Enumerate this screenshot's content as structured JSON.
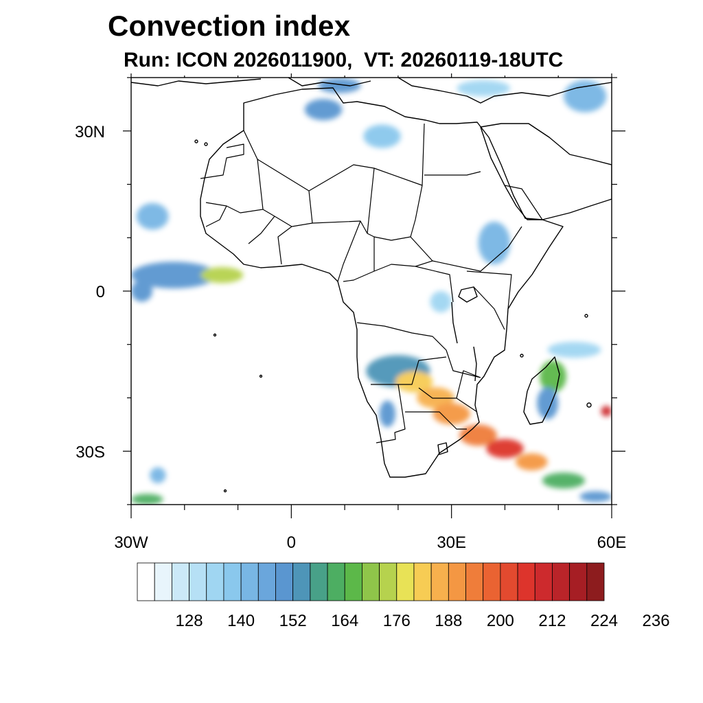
{
  "header": {
    "title": "Convection index",
    "subtitle": "Run: ICON 2026011900,  VT: 20260119-18UTC"
  },
  "map": {
    "projection": "cylindrical equidistant",
    "lon_range": [
      -30,
      60
    ],
    "lat_range": [
      -40,
      40
    ],
    "lat_tick_labels": [
      {
        "value": 30,
        "label": "30N"
      },
      {
        "value": 0,
        "label": "0"
      },
      {
        "value": -30,
        "label": "30S"
      }
    ],
    "lon_tick_labels": [
      {
        "value": -30,
        "label": "30W"
      },
      {
        "value": 0,
        "label": "0"
      },
      {
        "value": 30,
        "label": "30E"
      },
      {
        "value": 60,
        "label": "60E"
      }
    ],
    "minor_lat_ticks": [
      40,
      20,
      10,
      -10,
      -20,
      -40
    ],
    "minor_lon_ticks": [
      -20,
      -10,
      10,
      20,
      40,
      50
    ],
    "convection_areas": [
      {
        "lon": 9,
        "lat": 38.5,
        "rx": 4,
        "ry": 1.4,
        "value": 150
      },
      {
        "lon": 6,
        "lat": 34,
        "rx": 3.5,
        "ry": 2,
        "value": 148
      },
      {
        "lon": 17,
        "lat": 29,
        "rx": 3.5,
        "ry": 2.2,
        "value": 138
      },
      {
        "lon": 36,
        "lat": 38,
        "rx": 5,
        "ry": 1.5,
        "value": 132
      },
      {
        "lon": 55,
        "lat": 36.5,
        "rx": 4,
        "ry": 3,
        "value": 140
      },
      {
        "lon": -26,
        "lat": 14,
        "rx": 3,
        "ry": 2.5,
        "value": 140
      },
      {
        "lon": -22,
        "lat": 3,
        "rx": 8,
        "ry": 2.5,
        "value": 148
      },
      {
        "lon": -13,
        "lat": 3,
        "rx": 4,
        "ry": 1.5,
        "value": 172
      },
      {
        "lon": -28,
        "lat": 0,
        "rx": 2,
        "ry": 2,
        "value": 150
      },
      {
        "lon": 38,
        "lat": 9,
        "rx": 3,
        "ry": 4,
        "value": 140
      },
      {
        "lon": 28,
        "lat": -2,
        "rx": 2,
        "ry": 2,
        "value": 135
      },
      {
        "lon": 20,
        "lat": -15,
        "rx": 6,
        "ry": 3,
        "value": 155
      },
      {
        "lon": 23,
        "lat": -17,
        "rx": 3.5,
        "ry": 2,
        "value": 180
      },
      {
        "lon": 27,
        "lat": -20,
        "rx": 3.5,
        "ry": 2,
        "value": 184
      },
      {
        "lon": 30,
        "lat": -23,
        "rx": 3.5,
        "ry": 2,
        "value": 190
      },
      {
        "lon": 35,
        "lat": -27,
        "rx": 3.5,
        "ry": 2,
        "value": 195
      },
      {
        "lon": 40,
        "lat": -29.5,
        "rx": 3.5,
        "ry": 1.8,
        "value": 205
      },
      {
        "lon": 45,
        "lat": -32,
        "rx": 3,
        "ry": 1.6,
        "value": 190
      },
      {
        "lon": 51,
        "lat": -35.5,
        "rx": 4,
        "ry": 1.5,
        "value": 160
      },
      {
        "lon": 57,
        "lat": -38.5,
        "rx": 3,
        "ry": 1,
        "value": 150
      },
      {
        "lon": 49,
        "lat": -16,
        "rx": 2.5,
        "ry": 3,
        "value": 165
      },
      {
        "lon": 48,
        "lat": -21,
        "rx": 2,
        "ry": 3,
        "value": 150
      },
      {
        "lon": 53,
        "lat": -11,
        "rx": 5,
        "ry": 1.5,
        "value": 135
      },
      {
        "lon": 59,
        "lat": -22.5,
        "rx": 1,
        "ry": 1,
        "value": 210
      },
      {
        "lon": -25,
        "lat": -34.5,
        "rx": 1.5,
        "ry": 1.5,
        "value": 140
      },
      {
        "lon": -27,
        "lat": -39,
        "rx": 3,
        "ry": 1,
        "value": 160
      },
      {
        "lon": 18,
        "lat": -23,
        "rx": 1.5,
        "ry": 2.5,
        "value": 150
      }
    ]
  },
  "colorbar": {
    "colors": [
      "#ffffff",
      "#e8f5fc",
      "#cbe9f8",
      "#b6e0f5",
      "#a0d6f2",
      "#8ac8ed",
      "#78b6e4",
      "#6aa6dc",
      "#5a96d0",
      "#4e95b8",
      "#48a188",
      "#4dae62",
      "#5cb849",
      "#8fc54a",
      "#b6d24e",
      "#e8e256",
      "#f7cc54",
      "#f7b04d",
      "#f49743",
      "#ef7d3a",
      "#ea6332",
      "#e34a2f",
      "#dd342c",
      "#cd2a2d",
      "#ba2429",
      "#a61e24",
      "#8d1c1e"
    ],
    "tick_values": [
      "128",
      "140",
      "152",
      "164",
      "176",
      "188",
      "200",
      "212",
      "224",
      "236"
    ]
  }
}
